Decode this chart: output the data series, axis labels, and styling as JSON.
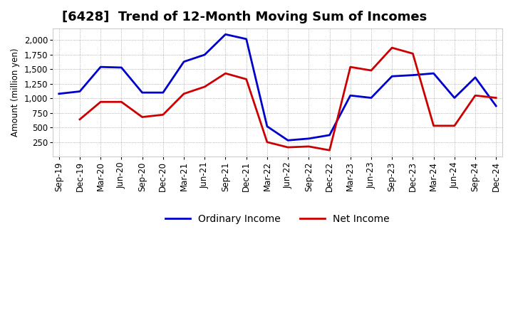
{
  "title": "[6428]  Trend of 12-Month Moving Sum of Incomes",
  "ylabel": "Amount (million yen)",
  "plot_background": "#ffffff",
  "x_labels": [
    "Sep-19",
    "Dec-19",
    "Mar-20",
    "Jun-20",
    "Sep-20",
    "Dec-20",
    "Mar-21",
    "Jun-21",
    "Sep-21",
    "Dec-21",
    "Mar-22",
    "Jun-22",
    "Sep-22",
    "Dec-22",
    "Mar-23",
    "Jun-23",
    "Sep-23",
    "Dec-23",
    "Mar-24",
    "Jun-24",
    "Sep-24",
    "Dec-24"
  ],
  "ordinary_income": [
    1080,
    1120,
    1540,
    1530,
    1100,
    1100,
    1630,
    1750,
    2100,
    2020,
    520,
    280,
    310,
    370,
    1050,
    1010,
    1380,
    1400,
    1430,
    1010,
    1360,
    870
  ],
  "net_income": [
    null,
    640,
    940,
    940,
    680,
    720,
    1080,
    1200,
    1430,
    1330,
    250,
    160,
    175,
    110,
    1540,
    1480,
    1870,
    1770,
    530,
    530,
    1050,
    1010
  ],
  "ordinary_color": "#0000cc",
  "net_color": "#cc0000",
  "ylim": [
    0,
    2200
  ],
  "yticks": [
    250,
    500,
    750,
    1000,
    1250,
    1500,
    1750,
    2000
  ],
  "grid_color": "#aaaaaa",
  "title_fontsize": 13,
  "legend_fontsize": 10,
  "axis_fontsize": 8.5,
  "linewidth": 2.0
}
